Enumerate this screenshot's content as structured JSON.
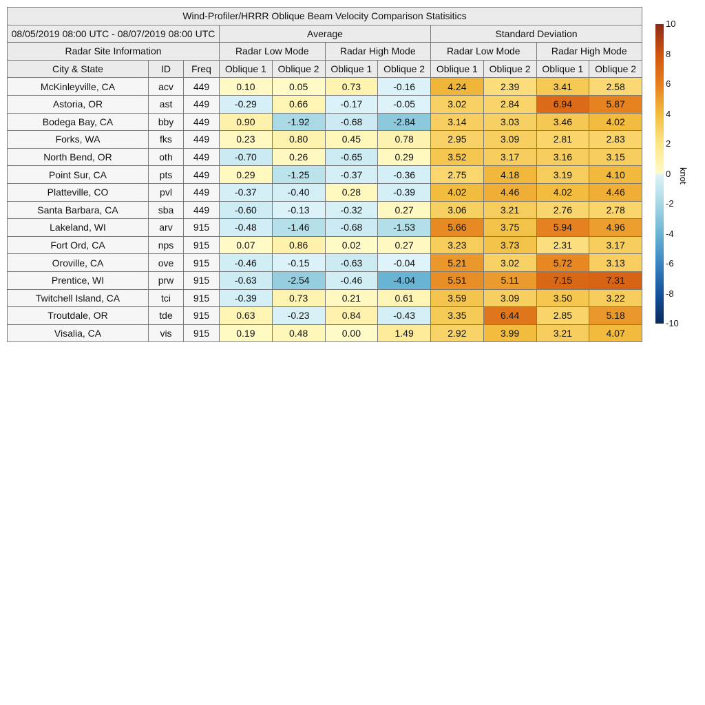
{
  "chart_data": {
    "type": "table",
    "title": "Wind-Profiler/HRRR Oblique Beam Velocity Comparison Statisitics",
    "period": "08/05/2019 08:00 UTC - 08/07/2019 08:00 UTC",
    "group_headers": [
      "Average",
      "Standard Deviation"
    ],
    "site_header": "Radar Site Information",
    "mode_headers": [
      "Radar Low Mode",
      "Radar High Mode",
      "Radar Low Mode",
      "Radar High Mode"
    ],
    "columns": [
      "City & State",
      "ID",
      "Freq",
      "Oblique 1",
      "Oblique 2",
      "Oblique 1",
      "Oblique 2",
      "Oblique 1",
      "Oblique 2",
      "Oblique 1",
      "Oblique 2"
    ],
    "rows": [
      [
        "McKinleyville, CA",
        "acv",
        "449",
        "0.10",
        "0.05",
        "0.73",
        "-0.16",
        "4.24",
        "2.39",
        "3.41",
        "2.58"
      ],
      [
        "Astoria, OR",
        "ast",
        "449",
        "-0.29",
        "0.66",
        "-0.17",
        "-0.05",
        "3.02",
        "2.84",
        "6.94",
        "5.87"
      ],
      [
        "Bodega Bay, CA",
        "bby",
        "449",
        "0.90",
        "-1.92",
        "-0.68",
        "-2.84",
        "3.14",
        "3.03",
        "3.46",
        "4.02"
      ],
      [
        "Forks, WA",
        "fks",
        "449",
        "0.23",
        "0.80",
        "0.45",
        "0.78",
        "2.95",
        "3.09",
        "2.81",
        "2.83"
      ],
      [
        "North Bend, OR",
        "oth",
        "449",
        "-0.70",
        "0.26",
        "-0.65",
        "0.29",
        "3.52",
        "3.17",
        "3.16",
        "3.15"
      ],
      [
        "Point Sur, CA",
        "pts",
        "449",
        "0.29",
        "-1.25",
        "-0.37",
        "-0.36",
        "2.75",
        "4.18",
        "3.19",
        "4.10"
      ],
      [
        "Platteville, CO",
        "pvl",
        "449",
        "-0.37",
        "-0.40",
        "0.28",
        "-0.39",
        "4.02",
        "4.46",
        "4.02",
        "4.46"
      ],
      [
        "Santa Barbara, CA",
        "sba",
        "449",
        "-0.60",
        "-0.13",
        "-0.32",
        "0.27",
        "3.06",
        "3.21",
        "2.76",
        "2.78"
      ],
      [
        "Lakeland, WI",
        "arv",
        "915",
        "-0.48",
        "-1.46",
        "-0.68",
        "-1.53",
        "5.66",
        "3.75",
        "5.94",
        "4.96"
      ],
      [
        "Fort Ord, CA",
        "nps",
        "915",
        "0.07",
        "0.86",
        "0.02",
        "0.27",
        "3.23",
        "3.73",
        "2.31",
        "3.17"
      ],
      [
        "Oroville, CA",
        "ove",
        "915",
        "-0.46",
        "-0.15",
        "-0.63",
        "-0.04",
        "5.21",
        "3.02",
        "5.72",
        "3.13"
      ],
      [
        "Prentice, WI",
        "prw",
        "915",
        "-0.63",
        "-2.54",
        "-0.46",
        "-4.04",
        "5.51",
        "5.11",
        "7.15",
        "7.31"
      ],
      [
        "Twitchell Island, CA",
        "tci",
        "915",
        "-0.39",
        "0.73",
        "0.21",
        "0.61",
        "3.59",
        "3.09",
        "3.50",
        "3.22"
      ],
      [
        "Troutdale, OR",
        "tde",
        "915",
        "0.63",
        "-0.23",
        "0.84",
        "-0.43",
        "3.35",
        "6.44",
        "2.85",
        "5.18"
      ],
      [
        "Visalia, CA",
        "vis",
        "915",
        "0.19",
        "0.48",
        "0.00",
        "1.49",
        "2.92",
        "3.99",
        "3.21",
        "4.07"
      ]
    ],
    "colorbar": {
      "ticks": [
        "10",
        "8",
        "6",
        "4",
        "2",
        "0",
        "-2",
        "-4",
        "-6",
        "-8",
        "-10"
      ],
      "range": [
        -10,
        10
      ],
      "unit": "knot"
    }
  }
}
